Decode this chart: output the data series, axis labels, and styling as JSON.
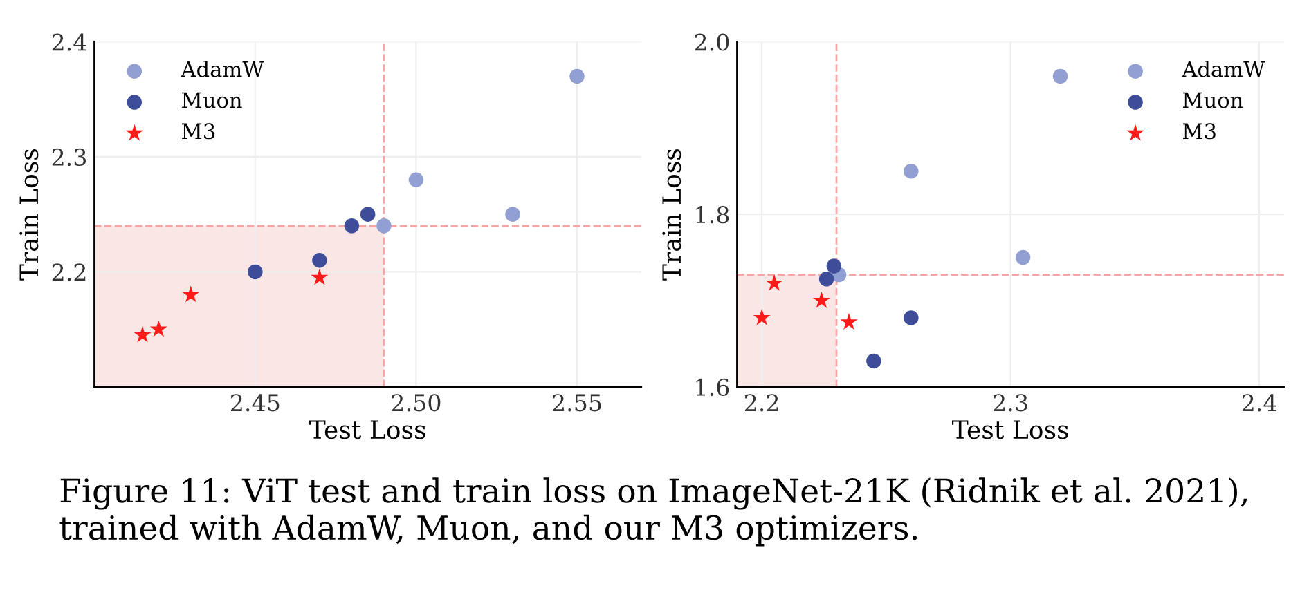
{
  "chart_data": [
    {
      "type": "scatter",
      "xlabel": "Test Loss",
      "ylabel": "Train Loss",
      "xlim": [
        2.4,
        2.57
      ],
      "xticks": [
        2.45,
        {
          "value": 2.5,
          "label": "2.50"
        },
        2.55
      ],
      "ylim": [
        2.1,
        2.4
      ],
      "yticks": [
        2.2,
        2.3,
        2.4
      ],
      "grid": true,
      "legend": "top left",
      "series": [
        {
          "name": "AdamW",
          "color": "#929fd2",
          "marker": "circle",
          "x": [
            2.55,
            2.5,
            2.53,
            2.49
          ],
          "values": [
            2.37,
            2.28,
            2.25,
            2.24
          ]
        },
        {
          "name": "Muon",
          "color": "#3e4d99",
          "marker": "circle",
          "x": [
            2.485,
            2.48,
            2.47,
            2.45
          ],
          "values": [
            2.25,
            2.24,
            2.21,
            2.2
          ]
        },
        {
          "name": "M3",
          "color": "#ff1a1a",
          "marker": "star",
          "x": [
            2.415,
            2.42,
            2.43,
            2.47
          ],
          "values": [
            2.145,
            2.15,
            2.18,
            2.195
          ]
        }
      ],
      "ref_lines": [
        {
          "axis": "x",
          "value": 2.49,
          "color": "#f4a6a6",
          "line_style": "dashed"
        },
        {
          "axis": "y",
          "value": 2.24,
          "color": "#f4a6a6",
          "line_style": "dashed"
        }
      ],
      "bands": [
        {
          "axis": "x",
          "from": 2.4,
          "to": 2.49,
          "color": "#fbe6e6"
        }
      ],
      "annotations": [
        "Figure 11: ViT test and train loss on ImageNet-21K (Ridnik et al. 2021), trained with AdamW, Muon, and our M3 optimizers."
      ]
    },
    {
      "type": "scatter",
      "xlabel": "Test Loss",
      "ylabel": "Train Loss",
      "xlim": [
        2.19,
        2.41
      ],
      "xticks": [
        2.2,
        2.3,
        2.4
      ],
      "ylim": [
        1.6,
        2.0
      ],
      "yticks": [
        1.6,
        1.8,
        {
          "value": 2.0,
          "label": "2.0"
        }
      ],
      "grid": true,
      "legend": "top right",
      "series": [
        {
          "name": "AdamW",
          "color": "#929fd2",
          "marker": "circle",
          "x": [
            2.32,
            2.26,
            2.305,
            2.231
          ],
          "values": [
            1.96,
            1.85,
            1.75,
            1.73
          ]
        },
        {
          "name": "Muon",
          "color": "#3e4d99",
          "marker": "circle",
          "x": [
            2.229,
            2.226,
            2.26,
            2.245
          ],
          "values": [
            1.74,
            1.725,
            1.68,
            1.63
          ]
        },
        {
          "name": "M3",
          "color": "#ff1a1a",
          "marker": "star",
          "x": [
            2.2,
            2.205,
            2.224,
            2.235
          ],
          "values": [
            1.68,
            1.72,
            1.7,
            1.675
          ]
        }
      ],
      "ref_lines": [
        {
          "axis": "x",
          "value": 2.23,
          "color": "#f4a6a6",
          "line_style": "dashed"
        },
        {
          "axis": "y",
          "value": 1.73,
          "color": "#f4a6a6",
          "line_style": "dashed"
        }
      ],
      "bands": [
        {
          "axis": "x",
          "from": 2.19,
          "to": 2.23,
          "color": "#fbe6e6"
        }
      ]
    }
  ]
}
